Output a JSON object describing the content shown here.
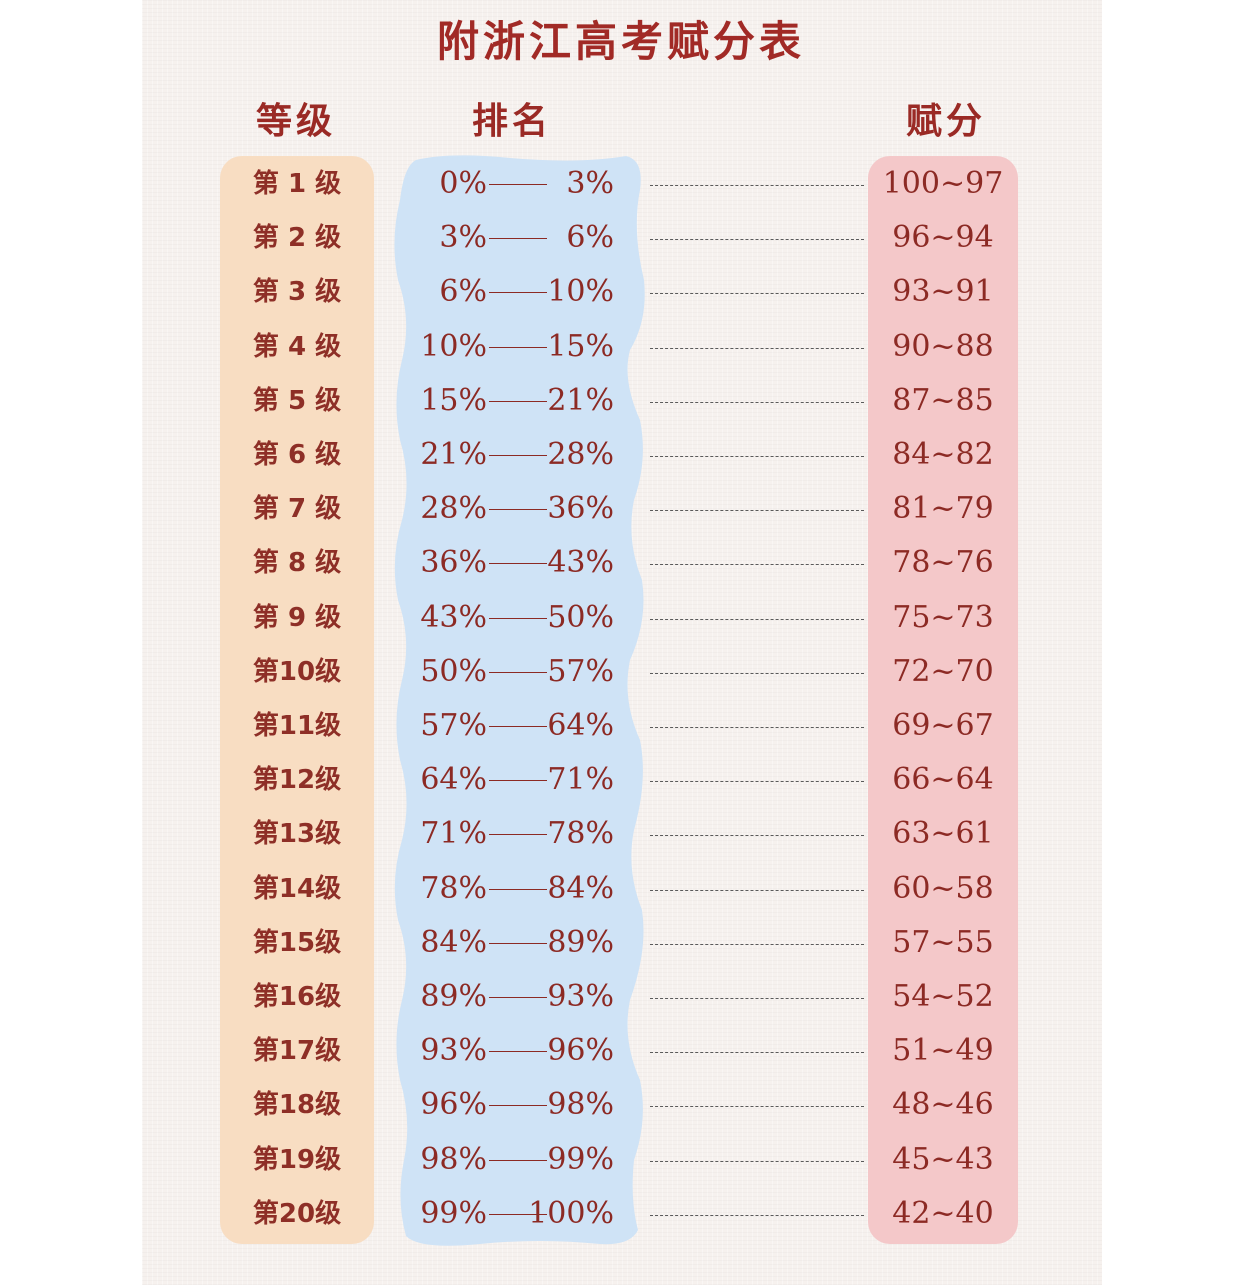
{
  "title": "附浙江高考赋分表",
  "headers": {
    "grade": "等级",
    "rank": "排名",
    "score": "赋分"
  },
  "colors": {
    "title": "#a12a26",
    "grade_band": "#f8ddc2",
    "rank_band": "#cfe3f6",
    "score_band": "#f4c8c9",
    "text": "#8c2a24"
  },
  "rows": [
    {
      "grade": "第 1 级",
      "rank_from": "0%",
      "rank_to": "3%",
      "score": "100~97"
    },
    {
      "grade": "第 2 级",
      "rank_from": "3%",
      "rank_to": "6%",
      "score": "96~94"
    },
    {
      "grade": "第 3 级",
      "rank_from": "6%",
      "rank_to": "10%",
      "score": "93~91"
    },
    {
      "grade": "第 4 级",
      "rank_from": "10%",
      "rank_to": "15%",
      "score": "90~88"
    },
    {
      "grade": "第 5 级",
      "rank_from": "15%",
      "rank_to": "21%",
      "score": "87~85"
    },
    {
      "grade": "第 6 级",
      "rank_from": "21%",
      "rank_to": "28%",
      "score": "84~82"
    },
    {
      "grade": "第 7 级",
      "rank_from": "28%",
      "rank_to": "36%",
      "score": "81~79"
    },
    {
      "grade": "第 8 级",
      "rank_from": "36%",
      "rank_to": "43%",
      "score": "78~76"
    },
    {
      "grade": "第 9 级",
      "rank_from": "43%",
      "rank_to": "50%",
      "score": "75~73"
    },
    {
      "grade": "第10级",
      "rank_from": "50%",
      "rank_to": "57%",
      "score": "72~70"
    },
    {
      "grade": "第11级",
      "rank_from": "57%",
      "rank_to": "64%",
      "score": "69~67"
    },
    {
      "grade": "第12级",
      "rank_from": "64%",
      "rank_to": "71%",
      "score": "66~64"
    },
    {
      "grade": "第13级",
      "rank_from": "71%",
      "rank_to": "78%",
      "score": "63~61"
    },
    {
      "grade": "第14级",
      "rank_from": "78%",
      "rank_to": "84%",
      "score": "60~58"
    },
    {
      "grade": "第15级",
      "rank_from": "84%",
      "rank_to": "89%",
      "score": "57~55"
    },
    {
      "grade": "第16级",
      "rank_from": "89%",
      "rank_to": "93%",
      "score": "54~52"
    },
    {
      "grade": "第17级",
      "rank_from": "93%",
      "rank_to": "96%",
      "score": "51~49"
    },
    {
      "grade": "第18级",
      "rank_from": "96%",
      "rank_to": "98%",
      "score": "48~46"
    },
    {
      "grade": "第19级",
      "rank_from": "98%",
      "rank_to": "99%",
      "score": "45~43"
    },
    {
      "grade": "第20级",
      "rank_from": "99%",
      "rank_to": "100%",
      "score": "42~40"
    }
  ]
}
